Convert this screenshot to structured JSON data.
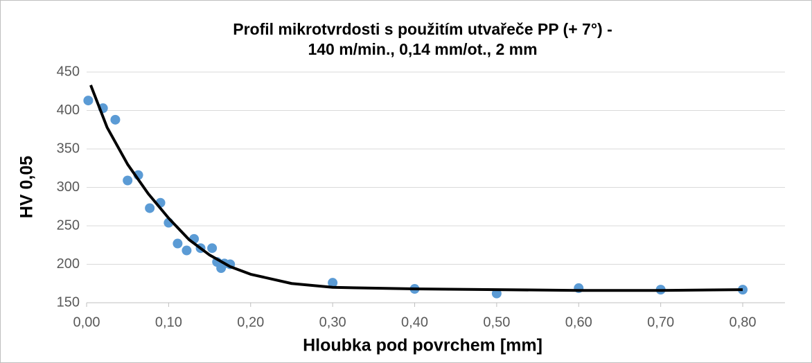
{
  "chart_data": {
    "type": "scatter",
    "title": [
      "Profil mikrotvrdosti s použitím utvařeče PP (+ 7°) -",
      "140 m/min., 0,14 mm/ot., 2 mm"
    ],
    "x_label": "Hloubka pod povrchem [mm]",
    "y_label": "HV 0,05",
    "series": [
      {
        "color": "#5b9bd5",
        "x": [
          0.002,
          0.02,
          0.035,
          0.05,
          0.063,
          0.077,
          0.09,
          0.1,
          0.111,
          0.122,
          0.131,
          0.139,
          0.153,
          0.159,
          0.164,
          0.168,
          0.175,
          0.3,
          0.4,
          0.5,
          0.6,
          0.7,
          0.8
        ],
        "values": [
          413,
          403,
          388,
          309,
          316,
          273,
          280,
          254,
          227,
          218,
          233,
          221,
          221,
          203,
          195,
          201,
          200,
          176,
          168,
          162,
          169,
          167,
          167
        ]
      }
    ],
    "trendline": {
      "color": "#000000",
      "x": [
        0.005,
        0.025,
        0.05,
        0.075,
        0.1,
        0.125,
        0.15,
        0.175,
        0.2,
        0.25,
        0.3,
        0.4,
        0.5,
        0.6,
        0.7,
        0.8
      ],
      "values": [
        433,
        378,
        330,
        292,
        260,
        232,
        212,
        197,
        187,
        175,
        170,
        168,
        167,
        166,
        166,
        167
      ]
    },
    "xlim": [
      0,
      0.8
    ],
    "xticks": [
      {
        "value": 0,
        "label": "0,00"
      },
      {
        "value": 0.1,
        "label": "0,10"
      },
      {
        "value": 0.2,
        "label": "0,20"
      },
      {
        "value": 0.3,
        "label": "0,30"
      },
      {
        "value": 0.4,
        "label": "0,40"
      },
      {
        "value": 0.5,
        "label": "0,50"
      },
      {
        "value": 0.6,
        "label": "0,60"
      },
      {
        "value": 0.7,
        "label": "0,70"
      },
      {
        "value": 0.8,
        "label": "0,80"
      }
    ],
    "ylim": [
      150,
      450
    ],
    "yticks": [
      150,
      200,
      250,
      300,
      350,
      400,
      450
    ],
    "grid": true
  }
}
